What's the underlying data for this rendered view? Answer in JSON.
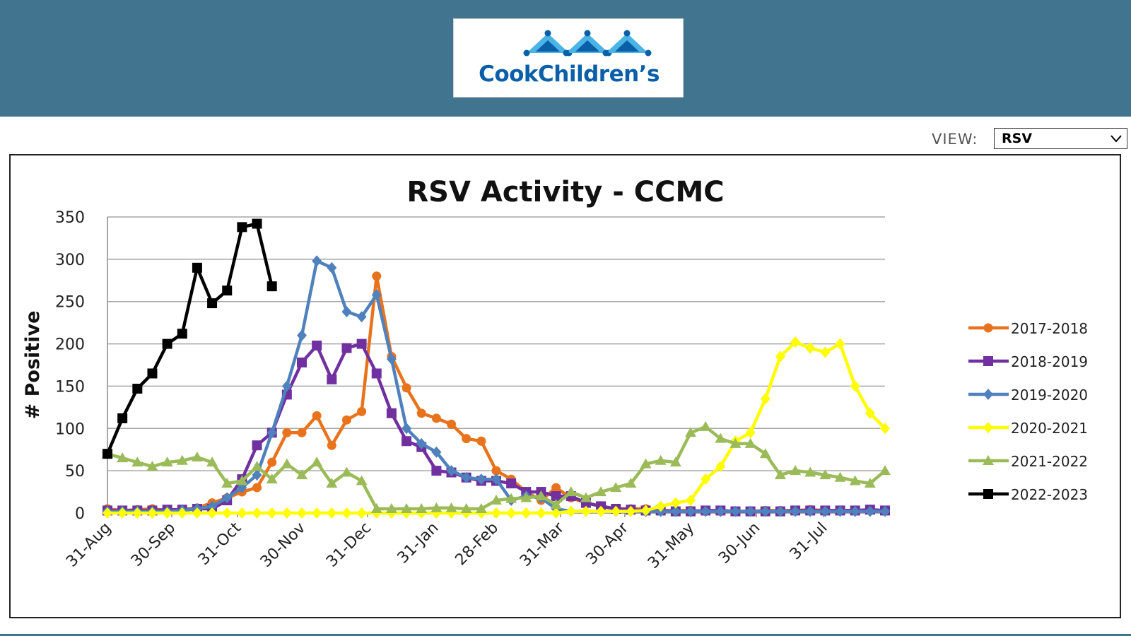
{
  "brand": {
    "name": "CookChildren’s",
    "header_color": "#41748e",
    "logo_colors": [
      "#0b5fa8",
      "#4ab4e6"
    ]
  },
  "view": {
    "label": "VIEW:",
    "selected": "RSV"
  },
  "chart_data": {
    "type": "line",
    "title": "RSV Activity - CCMC",
    "ylabel": "# Positive",
    "xlabel": "",
    "ylim": [
      0,
      350
    ],
    "yticks": [
      0,
      50,
      100,
      150,
      200,
      250,
      300,
      350
    ],
    "xtick_labels": [
      "31-Aug",
      "30-Sep",
      "31-Oct",
      "30-Nov",
      "31-Dec",
      "31-Jan",
      "28-Feb",
      "31-Mar",
      "30-Apr",
      "31-May",
      "30-Jun",
      "31-Jul"
    ],
    "xtick_week_index": [
      0,
      4.3,
      8.7,
      13,
      17.4,
      21.9,
      25.9,
      30.3,
      34.6,
      39,
      43.4,
      47.9
    ],
    "grid": true,
    "legend_position": "right",
    "series": [
      {
        "name": "2017-2018",
        "color": "#e8731c",
        "marker": "circle",
        "values": [
          5,
          3,
          4,
          5,
          3,
          4,
          6,
          12,
          18,
          25,
          30,
          60,
          95,
          95,
          115,
          80,
          110,
          120,
          280,
          185,
          148,
          118,
          112,
          105,
          88,
          85,
          50,
          40,
          25,
          15,
          30,
          18,
          12,
          8,
          5,
          5,
          5,
          3,
          3,
          3,
          2,
          2,
          2,
          2,
          3,
          3,
          3,
          4,
          3,
          3,
          3,
          3,
          3
        ]
      },
      {
        "name": "2018-2019",
        "color": "#7030a0",
        "marker": "square",
        "values": [
          3,
          3,
          3,
          3,
          4,
          4,
          5,
          5,
          15,
          40,
          80,
          95,
          140,
          178,
          198,
          158,
          195,
          200,
          165,
          118,
          85,
          78,
          50,
          48,
          42,
          38,
          38,
          35,
          25,
          25,
          20,
          20,
          12,
          8,
          5,
          4,
          3,
          3,
          2,
          2,
          3,
          3,
          2,
          2,
          2,
          2,
          3,
          3,
          3,
          3,
          3,
          4,
          3
        ]
      },
      {
        "name": "2019-2020",
        "color": "#4f81bd",
        "marker": "diamond",
        "values": [
          2,
          2,
          2,
          2,
          2,
          3,
          5,
          8,
          18,
          30,
          45,
          95,
          150,
          210,
          298,
          290,
          238,
          232,
          258,
          182,
          100,
          82,
          72,
          50,
          42,
          40,
          40,
          15,
          20,
          18,
          5,
          2,
          2,
          2,
          2,
          2,
          2,
          2,
          2,
          2,
          2,
          2,
          2,
          2,
          2,
          2,
          2,
          2,
          2,
          2,
          2,
          2,
          2
        ]
      },
      {
        "name": "2020-2021",
        "color": "#ffff00",
        "marker": "diamond",
        "values": [
          0,
          0,
          0,
          0,
          0,
          0,
          0,
          0,
          0,
          0,
          0,
          0,
          0,
          0,
          0,
          0,
          0,
          0,
          0,
          0,
          0,
          0,
          0,
          0,
          0,
          0,
          0,
          0,
          0,
          0,
          0,
          2,
          2,
          2,
          2,
          2,
          3,
          8,
          12,
          15,
          40,
          55,
          85,
          95,
          135,
          185,
          202,
          195,
          190,
          200,
          150,
          118,
          100
        ]
      },
      {
        "name": "2021-2022",
        "color": "#9bbb59",
        "marker": "triangle",
        "values": [
          70,
          65,
          60,
          55,
          60,
          62,
          66,
          60,
          35,
          38,
          55,
          40,
          58,
          45,
          60,
          35,
          48,
          38,
          5,
          5,
          5,
          5,
          6,
          6,
          5,
          5,
          15,
          17,
          18,
          20,
          10,
          25,
          18,
          25,
          30,
          35,
          58,
          62,
          60,
          95,
          102,
          88,
          82,
          82,
          70,
          45,
          50,
          48,
          45,
          42,
          38,
          35,
          50
        ]
      },
      {
        "name": "2022-2023",
        "color": "#000000",
        "marker": "square",
        "values": [
          70,
          112,
          147,
          165,
          200,
          212,
          290,
          248,
          263,
          338,
          342,
          268
        ]
      }
    ]
  }
}
